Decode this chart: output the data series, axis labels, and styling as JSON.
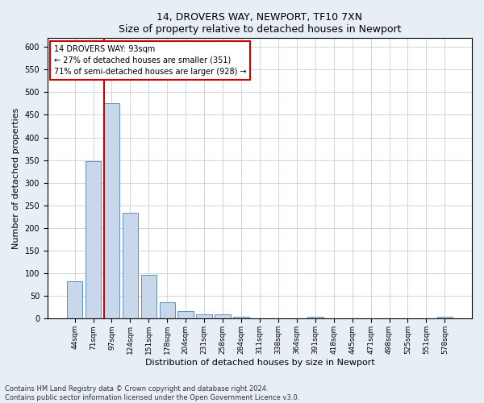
{
  "title1": "14, DROVERS WAY, NEWPORT, TF10 7XN",
  "title2": "Size of property relative to detached houses in Newport",
  "xlabel": "Distribution of detached houses by size in Newport",
  "ylabel": "Number of detached properties",
  "categories": [
    "44sqm",
    "71sqm",
    "97sqm",
    "124sqm",
    "151sqm",
    "178sqm",
    "204sqm",
    "231sqm",
    "258sqm",
    "284sqm",
    "311sqm",
    "338sqm",
    "364sqm",
    "391sqm",
    "418sqm",
    "445sqm",
    "471sqm",
    "498sqm",
    "525sqm",
    "551sqm",
    "578sqm"
  ],
  "values": [
    82,
    348,
    476,
    234,
    96,
    37,
    17,
    9,
    9,
    4,
    1,
    0,
    0,
    5,
    0,
    0,
    0,
    0,
    0,
    0,
    5
  ],
  "bar_color": "#c8d8ea",
  "bar_edge_color": "#6090b8",
  "annotation_text_line1": "14 DROVERS WAY: 93sqm",
  "annotation_text_line2": "← 27% of detached houses are smaller (351)",
  "annotation_text_line3": "71% of semi-detached houses are larger (928) →",
  "ylim_max": 620,
  "yticks": [
    0,
    50,
    100,
    150,
    200,
    250,
    300,
    350,
    400,
    450,
    500,
    550,
    600
  ],
  "footer1": "Contains HM Land Registry data © Crown copyright and database right 2024.",
  "footer2": "Contains public sector information licensed under the Open Government Licence v3.0.",
  "fig_bg_color": "#e8eef5",
  "plot_bg_color": "#ffffff",
  "grid_color": "#c5d0dc",
  "vline_color": "#cc0000",
  "annot_edge_color": "#cc0000",
  "title_fontsize": 9,
  "ylabel_fontsize": 8,
  "xlabel_fontsize": 8,
  "tick_fontsize": 7,
  "footer_fontsize": 6
}
